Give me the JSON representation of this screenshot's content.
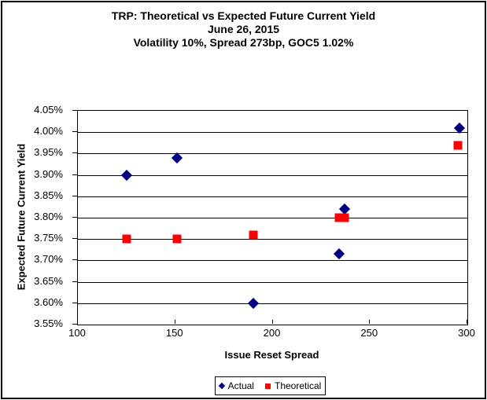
{
  "window": {
    "background": "#FFFFFF",
    "border_color": "#000000"
  },
  "title": {
    "line1": "TRP: Theoretical vs Expected Future Current Yield",
    "line2": "June 26, 2015",
    "line3": "Volatility 10%, Spread 273bp, GOC5 1.02%"
  },
  "chart_data": {
    "type": "scatter",
    "title": "TRP: Theoretical vs Expected Future Current Yield",
    "subtitle_date": "June 26, 2015",
    "subtitle_params": "Volatility 10%, Spread 273bp, GOC5 1.02%",
    "xlabel": "Issue Reset Spread",
    "ylabel": "Expected Future Current Yield",
    "xlim": [
      100,
      300
    ],
    "xticks": [
      100,
      150,
      200,
      250,
      300
    ],
    "ylim_percent": [
      3.55,
      4.05
    ],
    "ytick_step_percent": 0.05,
    "ytick_labels": [
      "4.05%",
      "4.00%",
      "3.95%",
      "3.90%",
      "3.85%",
      "3.80%",
      "3.75%",
      "3.70%",
      "3.65%",
      "3.60%",
      "3.55%"
    ],
    "grid": "horizontal",
    "gridline_color": "#000000",
    "legend_position": "bottom",
    "series": [
      {
        "name": "Actual",
        "marker": "diamond",
        "color": "#000080",
        "points": [
          {
            "x": 125,
            "y": 3.9
          },
          {
            "x": 151,
            "y": 3.94
          },
          {
            "x": 190,
            "y": 3.6
          },
          {
            "x": 234,
            "y": 3.715
          },
          {
            "x": 237,
            "y": 3.82
          },
          {
            "x": 296,
            "y": 4.01
          }
        ]
      },
      {
        "name": "Theoretical",
        "marker": "square",
        "color": "#FF0000",
        "points": [
          {
            "x": 125,
            "y": 3.75
          },
          {
            "x": 151,
            "y": 3.75
          },
          {
            "x": 190,
            "y": 3.76
          },
          {
            "x": 234,
            "y": 3.8
          },
          {
            "x": 237,
            "y": 3.8
          },
          {
            "x": 295,
            "y": 3.97
          }
        ]
      }
    ]
  }
}
